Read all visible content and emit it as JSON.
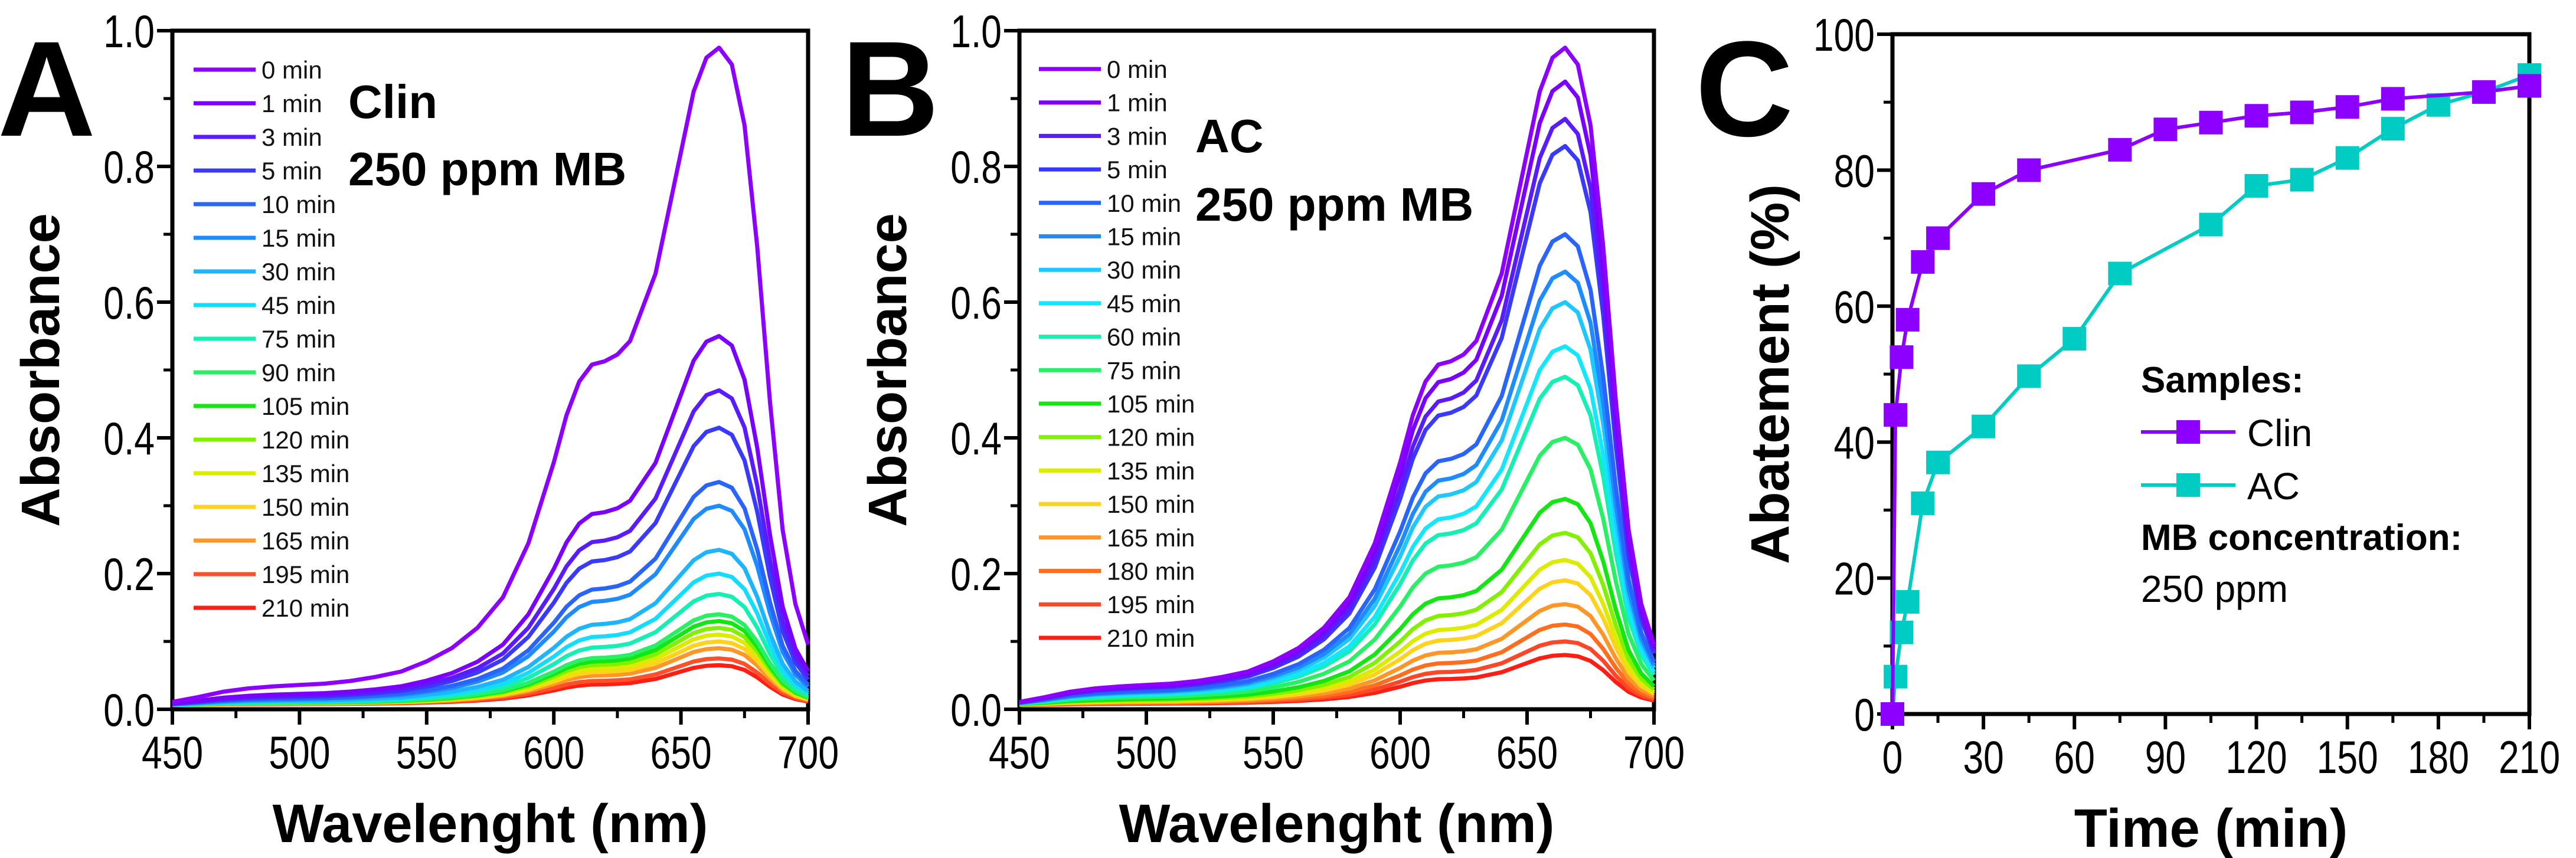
{
  "chart_data": [
    {
      "panel": "A",
      "type": "line",
      "title": "",
      "annotation": [
        "Clin",
        "250 ppm MB"
      ],
      "xlabel": "Wavelenght (nm)",
      "ylabel": "Absorbance",
      "xlim": [
        450,
        700
      ],
      "ylim": [
        0,
        1.0
      ],
      "xticks": [
        "450",
        "500",
        "550",
        "600",
        "650",
        "700"
      ],
      "yticks": [
        "0.0",
        "0.2",
        "0.4",
        "0.6",
        "0.8",
        "1.0"
      ],
      "legend_placement": "top-left",
      "reference_profile": {
        "wavelength": [
          450,
          460,
          470,
          480,
          490,
          500,
          510,
          520,
          530,
          540,
          550,
          560,
          570,
          580,
          590,
          600,
          605,
          610,
          615,
          620,
          625,
          630,
          640,
          650,
          655,
          660,
          665,
          670,
          675,
          680,
          685,
          690,
          695,
          700
        ],
        "absorbance": [
          0.005,
          0.012,
          0.02,
          0.025,
          0.028,
          0.03,
          0.032,
          0.036,
          0.042,
          0.05,
          0.065,
          0.085,
          0.115,
          0.16,
          0.24,
          0.36,
          0.43,
          0.48,
          0.505,
          0.51,
          0.52,
          0.54,
          0.64,
          0.82,
          0.91,
          0.96,
          0.975,
          0.95,
          0.86,
          0.68,
          0.45,
          0.26,
          0.15,
          0.09
        ]
      },
      "series": [
        {
          "name": "0 min",
          "peak": 0.975,
          "color": "#8B00FF"
        },
        {
          "name": "1 min",
          "peak": 0.55,
          "color": "#7A00FF"
        },
        {
          "name": "3 min",
          "peak": 0.47,
          "color": "#5A1BFF"
        },
        {
          "name": "5 min",
          "peak": 0.415,
          "color": "#3A3AFF"
        },
        {
          "name": "10 min",
          "peak": 0.335,
          "color": "#2A64FF"
        },
        {
          "name": "15 min",
          "peak": 0.3,
          "color": "#1E8CFF"
        },
        {
          "name": "30 min",
          "peak": 0.235,
          "color": "#1EB4FF"
        },
        {
          "name": "45 min",
          "peak": 0.2,
          "color": "#14DCFF"
        },
        {
          "name": "75 min",
          "peak": 0.17,
          "color": "#14F0B4"
        },
        {
          "name": "90 min",
          "peak": 0.14,
          "color": "#28F064"
        },
        {
          "name": "105 min",
          "peak": 0.13,
          "color": "#14E614"
        },
        {
          "name": "120 min",
          "peak": 0.12,
          "color": "#82F000"
        },
        {
          "name": "135 min",
          "peak": 0.11,
          "color": "#DCEB00"
        },
        {
          "name": "150 min",
          "peak": 0.1,
          "color": "#FFD21E"
        },
        {
          "name": "165 min",
          "peak": 0.09,
          "color": "#FF9628"
        },
        {
          "name": "195 min",
          "peak": 0.075,
          "color": "#FF5028"
        },
        {
          "name": "210 min",
          "peak": 0.065,
          "color": "#FF1E14"
        }
      ]
    },
    {
      "panel": "B",
      "type": "line",
      "title": "",
      "annotation": [
        "AC",
        "250 ppm MB"
      ],
      "xlabel": "Wavelenght (nm)",
      "ylabel": "Absorbance",
      "xlim": [
        450,
        700
      ],
      "ylim": [
        0,
        1.0
      ],
      "xticks": [
        "450",
        "500",
        "550",
        "600",
        "650",
        "700"
      ],
      "yticks": [
        "0.0",
        "0.2",
        "0.4",
        "0.6",
        "0.8",
        "1.0"
      ],
      "legend_placement": "top-left",
      "series": [
        {
          "name": "0 min",
          "peak": 0.975,
          "color": "#8B00FF"
        },
        {
          "name": "1 min",
          "peak": 0.925,
          "color": "#7A00FF"
        },
        {
          "name": "3 min",
          "peak": 0.87,
          "color": "#5A1BFF"
        },
        {
          "name": "5 min",
          "peak": 0.83,
          "color": "#3A3AFF"
        },
        {
          "name": "10 min",
          "peak": 0.7,
          "color": "#2A64FF"
        },
        {
          "name": "15 min",
          "peak": 0.645,
          "color": "#1E8CFF"
        },
        {
          "name": "30 min",
          "peak": 0.6,
          "color": "#1EC8FF"
        },
        {
          "name": "45 min",
          "peak": 0.535,
          "color": "#14E6FF"
        },
        {
          "name": "60 min",
          "peak": 0.49,
          "color": "#14F0B4"
        },
        {
          "name": "75 min",
          "peak": 0.4,
          "color": "#28F064"
        },
        {
          "name": "105 min",
          "peak": 0.31,
          "color": "#14E614"
        },
        {
          "name": "120 min",
          "peak": 0.26,
          "color": "#82F000"
        },
        {
          "name": "135 min",
          "peak": 0.22,
          "color": "#DCEB00"
        },
        {
          "name": "150 min",
          "peak": 0.19,
          "color": "#FFD21E"
        },
        {
          "name": "165 min",
          "peak": 0.155,
          "color": "#FF9628"
        },
        {
          "name": "180 min",
          "peak": 0.125,
          "color": "#FF6E1E"
        },
        {
          "name": "195 min",
          "peak": 0.1,
          "color": "#FF4628"
        },
        {
          "name": "210 min",
          "peak": 0.08,
          "color": "#FF1E14"
        }
      ]
    },
    {
      "panel": "C",
      "type": "line",
      "title": "",
      "xlabel": "Time (min)",
      "ylabel": "Abatement (%)",
      "xlim": [
        0,
        210
      ],
      "ylim": [
        0,
        100
      ],
      "xticks": [
        "0",
        "30",
        "60",
        "90",
        "120",
        "150",
        "180",
        "210"
      ],
      "yticks": [
        "0",
        "20",
        "40",
        "60",
        "80",
        "100"
      ],
      "legend_placement": "center-right",
      "legend_title": "Samples:",
      "note_title": "MB concentration:",
      "note_value": "250 ppm",
      "series": [
        {
          "name": "Clin",
          "color": "#8B00FF",
          "x": [
            0,
            1,
            3,
            5,
            10,
            15,
            30,
            45,
            75,
            90,
            105,
            120,
            135,
            150,
            165,
            195,
            210
          ],
          "y": [
            0,
            44,
            52.5,
            58,
            66.5,
            70,
            76.5,
            80,
            83,
            86,
            87,
            88,
            88.5,
            89.3,
            90.5,
            91.5,
            92.4
          ]
        },
        {
          "name": "AC",
          "color": "#00CCC4",
          "x": [
            0,
            1,
            3,
            5,
            10,
            15,
            30,
            45,
            60,
            75,
            105,
            120,
            135,
            150,
            165,
            180,
            195,
            210
          ],
          "y": [
            0,
            5.5,
            12,
            16.5,
            31,
            37,
            42.3,
            49.7,
            55.2,
            64.8,
            72,
            77.7,
            78.6,
            81.8,
            86.1,
            89.6,
            91.5,
            94
          ]
        }
      ]
    }
  ]
}
